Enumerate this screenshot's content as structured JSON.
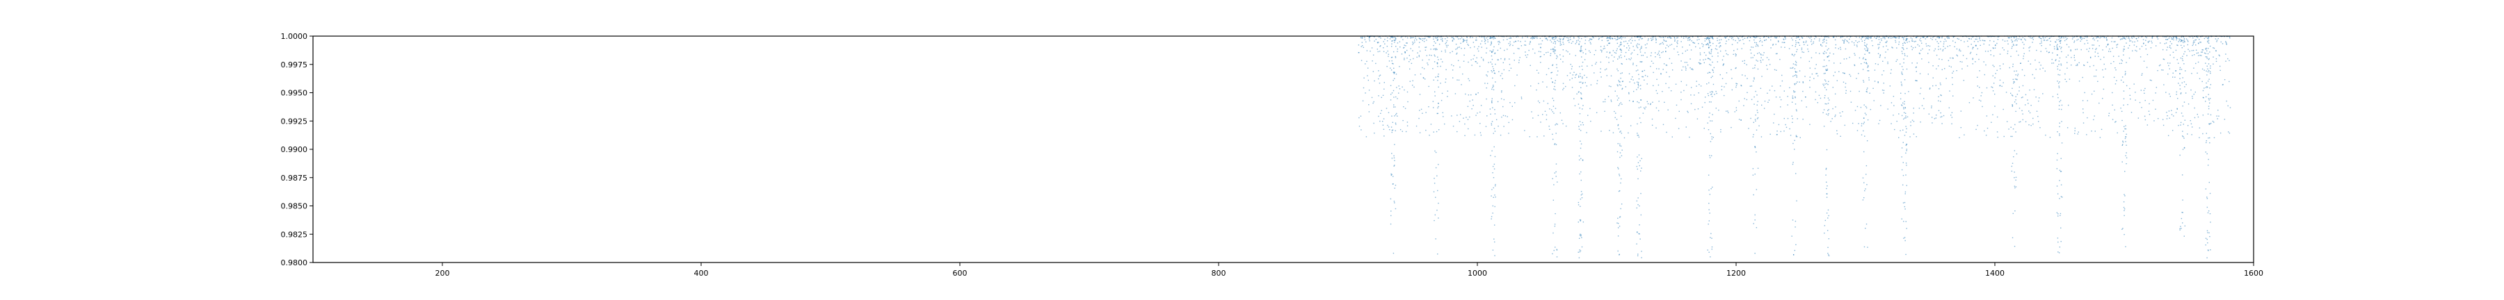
{
  "chart_data": {
    "type": "scatter",
    "title": "",
    "xlabel": "",
    "ylabel": "",
    "xlim": [
      100,
      1600
    ],
    "ylim": [
      0.98,
      1.0
    ],
    "grid": false,
    "legend": "none",
    "x_ticks": [
      200,
      400,
      600,
      800,
      1000,
      1200,
      1400,
      1600
    ],
    "y_ticks": [
      0.98,
      0.9825,
      0.985,
      0.9875,
      0.99,
      0.9925,
      0.995,
      0.9975,
      1.0
    ],
    "x_tick_labels": [
      "200",
      "400",
      "600",
      "800",
      "1000",
      "1200",
      "1400",
      "1600"
    ],
    "y_tick_labels": [
      "0.9800",
      "0.9825",
      "0.9850",
      "0.9875",
      "0.9900",
      "0.9925",
      "0.9950",
      "0.9975",
      "1.0000"
    ],
    "series": [
      {
        "marker_color": "#1f77b4",
        "x_range": [
          908,
          1582
        ],
        "y_range": [
          0.98,
          1.0
        ],
        "dense_columns_x": [
          935,
          968,
          1012,
          1060,
          1080,
          1110,
          1125,
          1180,
          1215,
          1245,
          1270,
          1300,
          1330,
          1415,
          1450,
          1500,
          1545,
          1565
        ],
        "points": [
          {
            "x": 912,
            "y": 0.999
          },
          {
            "x": 915,
            "y": 0.9965
          },
          {
            "x": 920,
            "y": 0.9942
          },
          {
            "x": 932,
            "y": 0.9978
          },
          {
            "x": 934,
            "y": 0.9915
          },
          {
            "x": 936,
            "y": 0.989
          },
          {
            "x": 940,
            "y": 0.9995
          },
          {
            "x": 948,
            "y": 0.996
          },
          {
            "x": 955,
            "y": 0.9983
          },
          {
            "x": 967,
            "y": 0.987
          },
          {
            "x": 970,
            "y": 0.9955
          },
          {
            "x": 985,
            "y": 0.999
          },
          {
            "x": 1000,
            "y": 0.9932
          },
          {
            "x": 1012,
            "y": 0.985
          },
          {
            "x": 1025,
            "y": 0.9975
          },
          {
            "x": 1060,
            "y": 0.9905
          },
          {
            "x": 1080,
            "y": 0.988
          },
          {
            "x": 1095,
            "y": 0.9968
          },
          {
            "x": 1110,
            "y": 0.984
          },
          {
            "x": 1125,
            "y": 0.9895
          },
          {
            "x": 1140,
            "y": 0.9985
          },
          {
            "x": 1165,
            "y": 0.9948
          },
          {
            "x": 1180,
            "y": 0.9805
          },
          {
            "x": 1200,
            "y": 0.9972
          },
          {
            "x": 1215,
            "y": 0.9925
          },
          {
            "x": 1245,
            "y": 0.99
          },
          {
            "x": 1270,
            "y": 0.9958
          },
          {
            "x": 1300,
            "y": 0.9865
          },
          {
            "x": 1330,
            "y": 0.994
          },
          {
            "x": 1360,
            "y": 0.9988
          },
          {
            "x": 1390,
            "y": 0.995
          },
          {
            "x": 1415,
            "y": 0.9875
          },
          {
            "x": 1450,
            "y": 0.992
          },
          {
            "x": 1480,
            "y": 0.9982
          },
          {
            "x": 1500,
            "y": 0.986
          },
          {
            "x": 1530,
            "y": 0.997
          },
          {
            "x": 1545,
            "y": 0.9835
          },
          {
            "x": 1565,
            "y": 0.991
          },
          {
            "x": 1580,
            "y": 0.998
          }
        ]
      }
    ]
  }
}
